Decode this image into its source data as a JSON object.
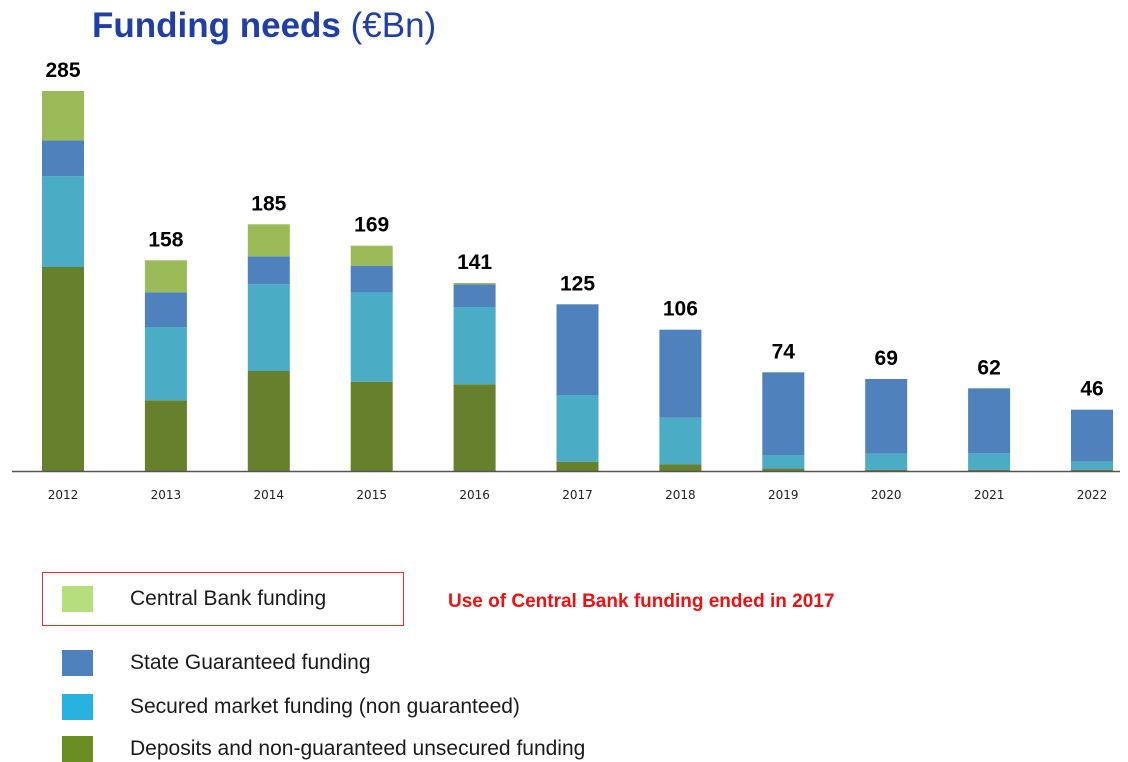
{
  "title": {
    "main": "Funding needs",
    "unit": "(€Bn)"
  },
  "note": "Use of Central Bank funding ended in 2017",
  "colors": {
    "central_bank": "#9bbb59",
    "state_guaranteed": "#4f81bd",
    "secured_market": "#4bacc6",
    "deposits": "#66802c",
    "legend_central_bank": "#b5df7d",
    "legend_state_guaranteed": "#4f81bd",
    "legend_secured_market": "#27b2e0",
    "legend_deposits": "#6b8e23",
    "title": "#1f3ea6",
    "note": "#ee1111"
  },
  "legend": [
    {
      "label": "Central Bank funding",
      "key": "central_bank"
    },
    {
      "label": "State Guaranteed funding",
      "key": "state_guaranteed"
    },
    {
      "label": "Secured market funding (non guaranteed)",
      "key": "secured_market"
    },
    {
      "label": "Deposits and non-guaranteed unsecured funding",
      "key": "deposits"
    }
  ],
  "chart_data": {
    "type": "bar",
    "stacked": true,
    "categories": [
      "2012",
      "2013",
      "2014",
      "2015",
      "2016",
      "2017",
      "2018",
      "2019",
      "2020",
      "2021",
      "2022"
    ],
    "totals": [
      285,
      158,
      185,
      169,
      141,
      125,
      106,
      74,
      69,
      62,
      46
    ],
    "series": [
      {
        "name": "Deposits and non-guaranteed unsecured funding",
        "key": "deposits",
        "values": [
          153,
          53,
          75,
          67,
          65,
          7,
          5,
          2,
          1,
          1,
          1
        ]
      },
      {
        "name": "Secured market funding (non guaranteed)",
        "key": "secured_market",
        "values": [
          68,
          55,
          65,
          67,
          58,
          50,
          35,
          10,
          12,
          12,
          6
        ]
      },
      {
        "name": "State Guaranteed funding",
        "key": "state_guaranteed",
        "values": [
          27,
          26,
          21,
          20,
          17,
          68,
          66,
          62,
          56,
          49,
          39
        ]
      },
      {
        "name": "Central Bank funding",
        "key": "central_bank",
        "values": [
          37,
          24,
          24,
          15,
          1,
          0,
          0,
          0,
          0,
          0,
          0
        ]
      }
    ],
    "ylim": [
      0,
      285
    ],
    "grid": false,
    "legend_position": "bottom-left"
  }
}
